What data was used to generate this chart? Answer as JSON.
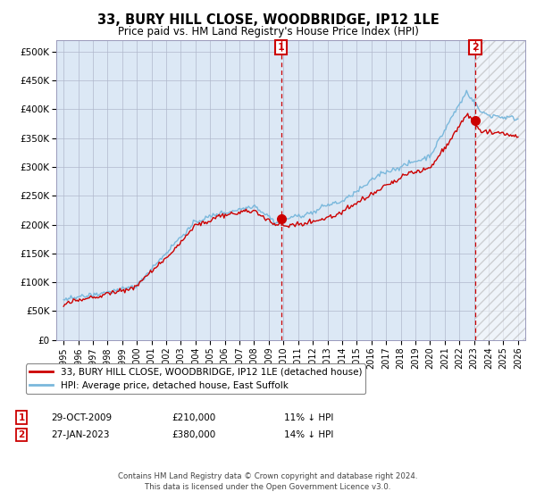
{
  "title": "33, BURY HILL CLOSE, WOODBRIDGE, IP12 1LE",
  "subtitle": "Price paid vs. HM Land Registry's House Price Index (HPI)",
  "hpi_label": "HPI: Average price, detached house, East Suffolk",
  "price_label": "33, BURY HILL CLOSE, WOODBRIDGE, IP12 1LE (detached house)",
  "hpi_color": "#7ab8dc",
  "price_color": "#cc0000",
  "marker_color": "#cc0000",
  "background_plot": "#dce8f5",
  "background_fig": "#ffffff",
  "grid_color": "#b0b8cc",
  "annotation1_date": "29-OCT-2009",
  "annotation1_price": "£210,000",
  "annotation1_hpi": "11% ↓ HPI",
  "annotation1_year": 2009.83,
  "annotation2_date": "27-JAN-2023",
  "annotation2_price": "£380,000",
  "annotation2_hpi": "14% ↓ HPI",
  "annotation2_year": 2023.07,
  "sale1_price": 210000,
  "sale2_price": 380000,
  "ylim": [
    0,
    520000
  ],
  "xlim_start": 1994.5,
  "xlim_end": 2026.5,
  "yticks": [
    0,
    50000,
    100000,
    150000,
    200000,
    250000,
    300000,
    350000,
    400000,
    450000,
    500000
  ],
  "ytick_labels": [
    "£0",
    "£50K",
    "£100K",
    "£150K",
    "£200K",
    "£250K",
    "£300K",
    "£350K",
    "£400K",
    "£450K",
    "£500K"
  ],
  "xticks": [
    1995,
    1996,
    1997,
    1998,
    1999,
    2000,
    2001,
    2002,
    2003,
    2004,
    2005,
    2006,
    2007,
    2008,
    2009,
    2010,
    2011,
    2012,
    2013,
    2014,
    2015,
    2016,
    2017,
    2018,
    2019,
    2020,
    2021,
    2022,
    2023,
    2024,
    2025,
    2026
  ],
  "footer": "Contains HM Land Registry data © Crown copyright and database right 2024.\nThis data is licensed under the Open Government Licence v3.0.",
  "hatch_region_start": 2023.07,
  "hatch_region_end": 2026.5
}
